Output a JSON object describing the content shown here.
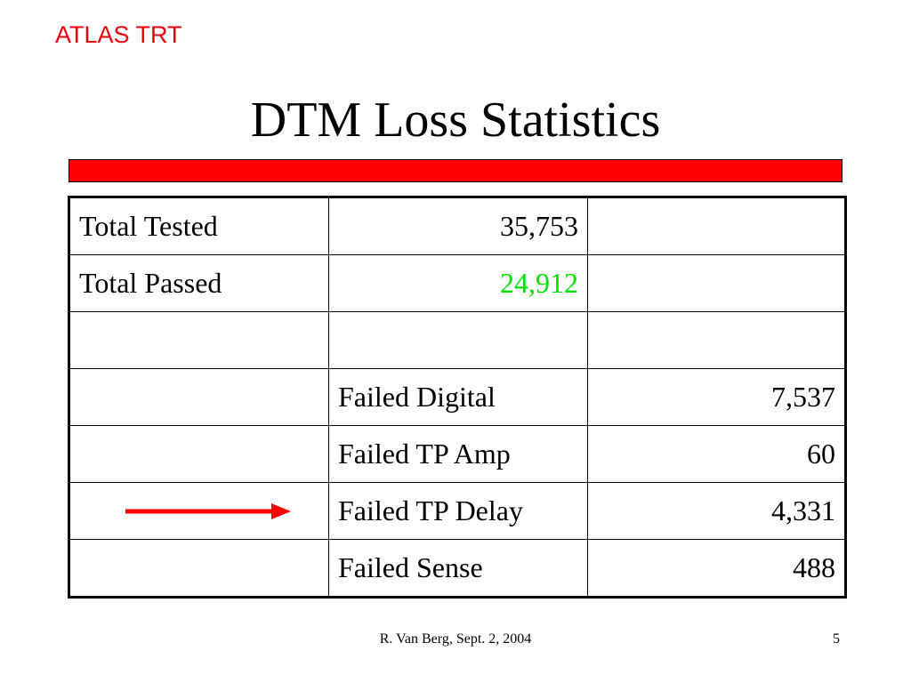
{
  "header": {
    "tag": "ATLAS TRT",
    "tag_color": "#e8000d"
  },
  "slide": {
    "title": "DTM Loss Statistics",
    "bar_color": "#ff0000"
  },
  "table": {
    "rows": [
      {
        "label": "Total Tested",
        "value": "35,753",
        "sub_label": "",
        "sub_value": ""
      },
      {
        "label": "Total Passed",
        "value": "24,912",
        "value_color": "#00e000",
        "sub_label": "",
        "sub_value": ""
      },
      {
        "label": "",
        "value": "",
        "sub_label": "",
        "sub_value": ""
      },
      {
        "label": "",
        "value": "",
        "sub_label": "Failed Digital",
        "sub_value": "7,537"
      },
      {
        "label": "",
        "value": "",
        "sub_label": "Failed TP Amp",
        "sub_value": "60"
      },
      {
        "label": "",
        "value": "",
        "sub_label": "Failed TP Delay",
        "sub_value": "4,331",
        "arrow": "right-arrow-icon",
        "arrow_color": "#ff0000"
      },
      {
        "label": "",
        "value": "",
        "sub_label": "Failed Sense",
        "sub_value": "488"
      }
    ]
  },
  "footer": {
    "text": "R. Van Berg, Sept. 2, 2004",
    "page": "5"
  }
}
